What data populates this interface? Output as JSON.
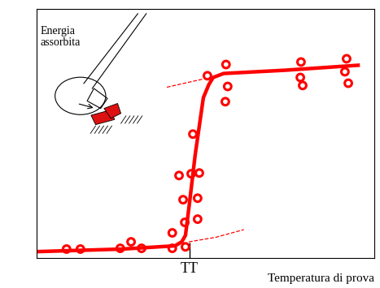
{
  "chart_data": {
    "type": "scatter",
    "x_label": "Temperatura di prova",
    "y_label": "Energia assorbita",
    "xlim": [
      0,
      100
    ],
    "ylim": [
      0,
      100
    ],
    "xticks": [
      {
        "value": 45.3,
        "label": "TT"
      }
    ],
    "yticks": [],
    "tick_labels": "x",
    "grid": false,
    "series": [
      {
        "type": "scatter",
        "color": "#ff0000",
        "marker": "o",
        "x": [
          8.9,
          13.0,
          24.8,
          28.0,
          31.1,
          40.2,
          44.1,
          40.2,
          43.9,
          47.7,
          43.4,
          47.7,
          42.2,
          45.8,
          48.2,
          46.3,
          50.6,
          56.1,
          56.6,
          55.9,
          78.3,
          78.1,
          78.8,
          91.8,
          91.3,
          92.3
        ],
        "values": [
          3.6,
          3.6,
          3.9,
          6.5,
          3.9,
          3.9,
          4.5,
          10.1,
          14.3,
          15.6,
          23.4,
          24.0,
          33.1,
          33.8,
          34.1,
          49.7,
          73.1,
          77.6,
          68.8,
          62.7,
          78.6,
          72.4,
          69.2,
          79.9,
          74.7,
          70.1
        ]
      },
      {
        "type": "line",
        "color": "#ff0000",
        "line_style": "solid",
        "x": [
          0.7,
          25.3,
          41.0,
          43.0,
          44.1,
          45.3,
          47.0,
          49.4,
          51.0,
          52.3,
          55.4,
          73.5,
          95.2
        ],
        "values": [
          2.6,
          3.6,
          4.9,
          6.5,
          9.1,
          22.1,
          41.6,
          64.3,
          69.5,
          72.4,
          74.0,
          75.3,
          77.3
        ]
      },
      {
        "type": "line",
        "color": "#ff0000",
        "line_style": "dashed",
        "x": [
          38.6,
          49.4
        ],
        "values": [
          68.5,
          71.8
        ]
      },
      {
        "type": "line",
        "color": "#ff0000",
        "line_style": "dashed",
        "x": [
          45.1,
          53.0,
          61.4
        ],
        "values": [
          6.5,
          8.3,
          11.4
        ]
      }
    ]
  }
}
